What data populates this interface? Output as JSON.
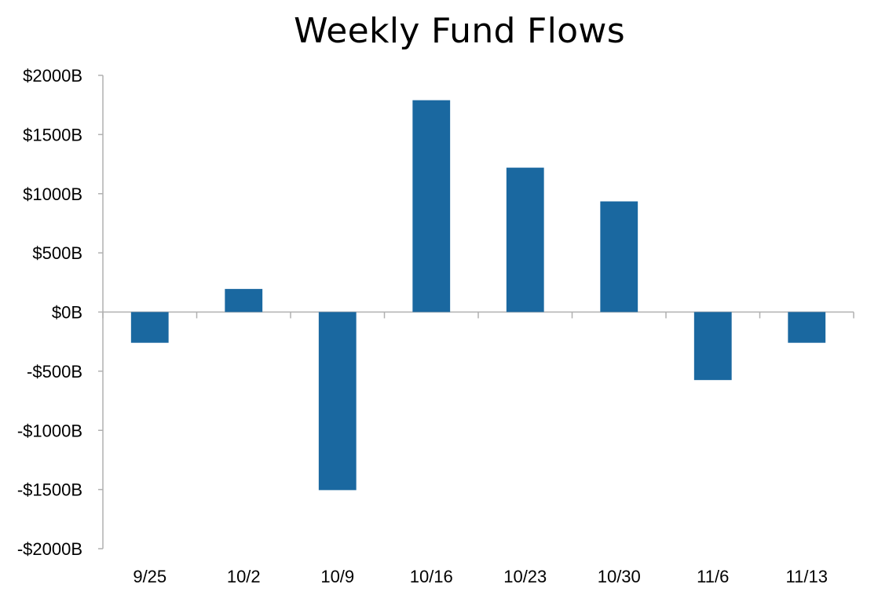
{
  "chart_data": {
    "type": "bar",
    "title": "Weekly Fund Flows",
    "xlabel": "",
    "ylabel": "",
    "categories": [
      "9/25",
      "10/2",
      "10/9",
      "10/16",
      "10/23",
      "10/30",
      "11/6",
      "11/13"
    ],
    "values": [
      -260,
      195,
      -1505,
      1790,
      1220,
      935,
      -575,
      -260
    ],
    "ylim": [
      -2000,
      2000
    ],
    "yticks": [
      2000,
      1500,
      1000,
      500,
      0,
      -500,
      -1000,
      -1500,
      -2000
    ],
    "ytick_labels": [
      "$2000B",
      "$1500B",
      "$1000B",
      "$500B",
      "$0B",
      "-$500B",
      "-$1000B",
      "-$1500B",
      "-$2000B"
    ],
    "bar_color": "#1a68a0",
    "grid": false,
    "legend": "none"
  }
}
